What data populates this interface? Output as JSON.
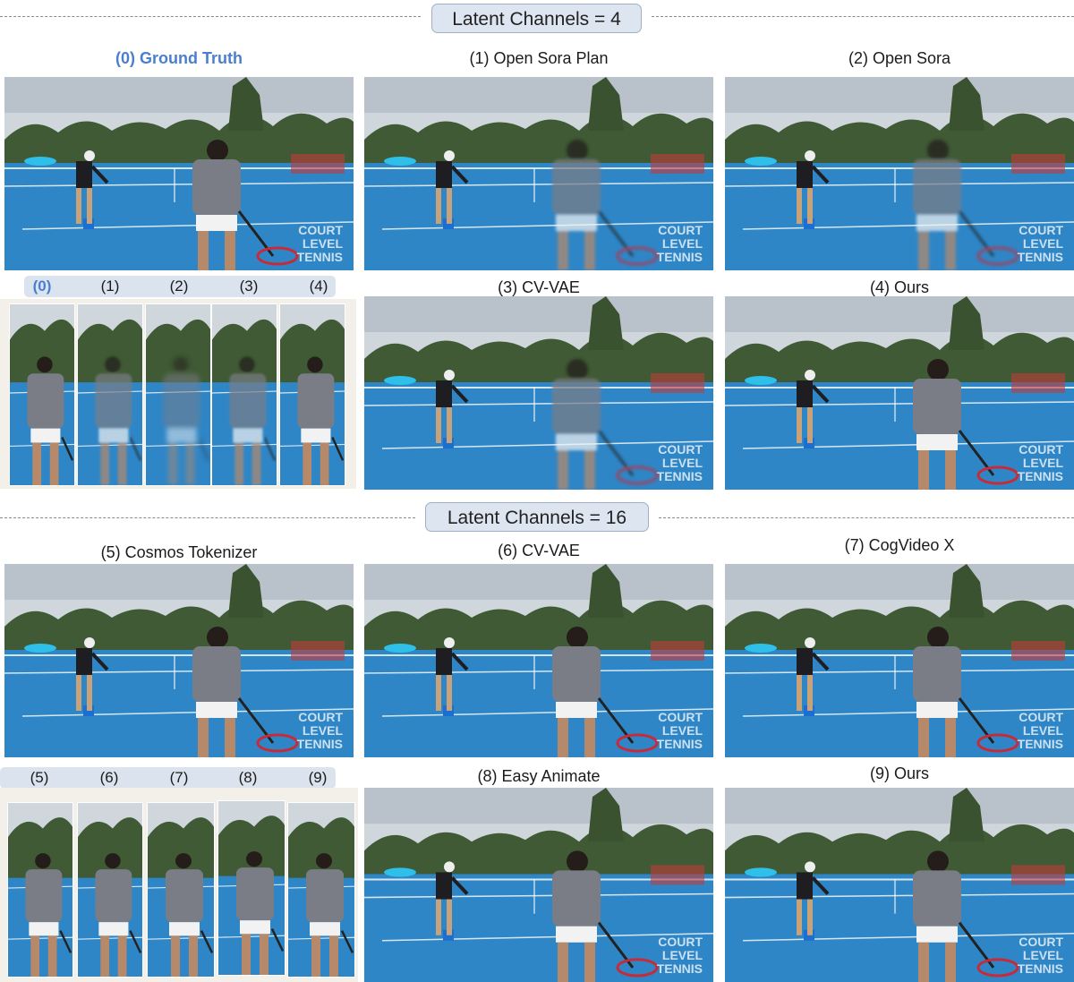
{
  "sections": [
    {
      "badge": "Latent Channels = 4"
    },
    {
      "badge": "Latent Channels = 16"
    }
  ],
  "captions": {
    "gt": "(0) Ground Truth",
    "c1": "(1) Open Sora Plan",
    "c2": "(2) Open Sora",
    "c3": "(3) CV-VAE",
    "c4": "(4) Ours",
    "c5": "(5) Cosmos Tokenizer",
    "c6": "(6) CV-VAE",
    "c7": "(7) CogVideo X",
    "c8": "(8) Easy Animate",
    "c9": "(9) Ours"
  },
  "crop_labels_top": [
    "(0)",
    "(1)",
    "(2)",
    "(3)",
    "(4)"
  ],
  "crop_labels_bottom": [
    "(5)",
    "(6)",
    "(7)",
    "(8)",
    "(9)"
  ],
  "watermark": [
    "COURT",
    "LEVEL",
    "TENNIS"
  ],
  "colors": {
    "court": "#2f86c6",
    "sky": "#cfd6dc",
    "trees": "#3f5a34",
    "accent": "#4a7fcf"
  }
}
